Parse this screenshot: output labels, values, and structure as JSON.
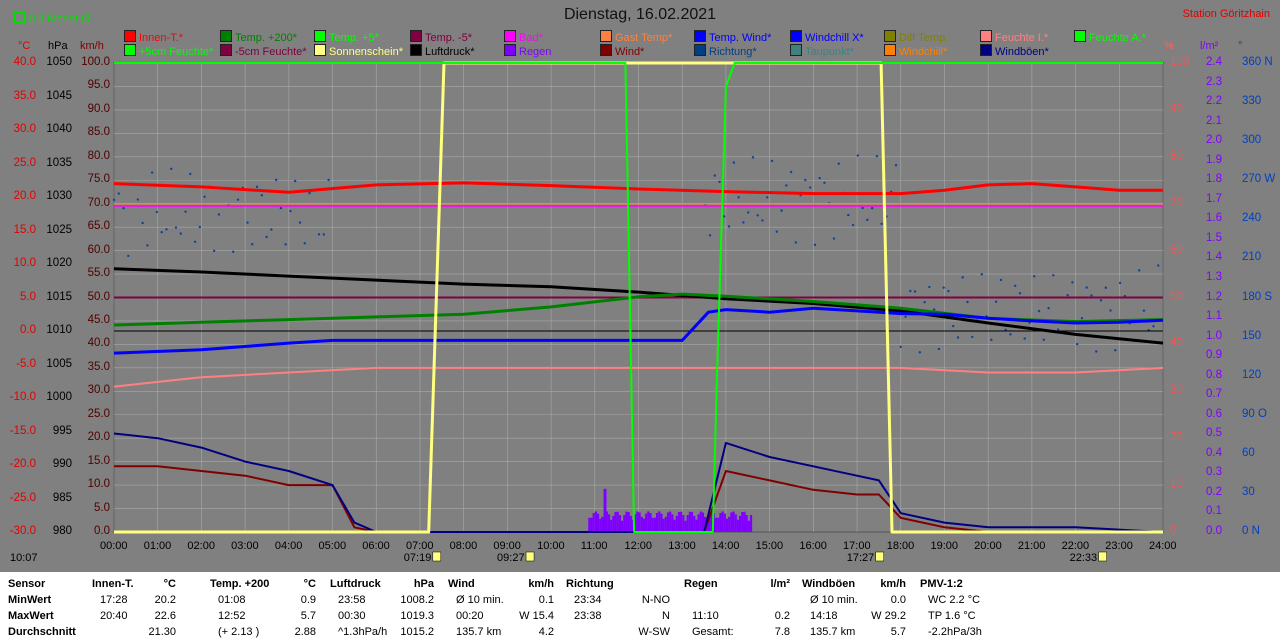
{
  "title": "Dienstag, 16.02.2021",
  "station": "Station Göritzhain",
  "monat_label": "0.8 Monat-Ø",
  "time_label": "10:07",
  "legend": [
    {
      "label": "Innen-T.*",
      "color": "#ff0000"
    },
    {
      "label": "Temp. +200*",
      "color": "#008000"
    },
    {
      "label": "Temp. +5*",
      "color": "#00ff00"
    },
    {
      "label": "Temp. -5*",
      "color": "#800040"
    },
    {
      "label": "Bad*",
      "color": "#ff00ff"
    },
    {
      "label": "Gast Temp*",
      "color": "#ff8040"
    },
    {
      "label": "Temp. Wind*",
      "color": "#0000ff"
    },
    {
      "label": "Windchill X*",
      "color": "#0000ff"
    },
    {
      "label": "Diff Temp.",
      "color": "#808000"
    },
    {
      "label": "Feuchte I.*",
      "color": "#ff8080"
    },
    {
      "label": "Feuchte A.*",
      "color": "#00ff00"
    },
    {
      "label": "+5cm Feuchte*",
      "color": "#00ff00"
    },
    {
      "label": "-5cm Feuchte*",
      "color": "#800040"
    },
    {
      "label": "Sonnenschein*",
      "color": "#ffff80"
    },
    {
      "label": "Luftdruck*",
      "color": "#000000"
    },
    {
      "label": "Regen",
      "color": "#8000ff"
    },
    {
      "label": "Wind*",
      "color": "#800000"
    },
    {
      "label": "Richtung*",
      "color": "#004080"
    },
    {
      "label": "Taupunkt*",
      "color": "#408080"
    },
    {
      "label": "Windchill*",
      "color": "#ff8000"
    },
    {
      "label": "Windböen*",
      "color": "#000080"
    }
  ],
  "units": {
    "c": "°C",
    "hpa": "hPa",
    "kmh": "km/h",
    "pct": "%",
    "lm2": "l/m²",
    "deg": "°"
  },
  "chart_data": {
    "type": "line",
    "title": "Dienstag, 16.02.2021",
    "x_ticks": [
      "00:00",
      "01:00",
      "02:00",
      "03:00",
      "04:00",
      "05:00",
      "06:00",
      "07:00",
      "08:00",
      "09:00",
      "10:00",
      "11:00",
      "12:00",
      "13:00",
      "14:00",
      "15:00",
      "16:00",
      "17:00",
      "18:00",
      "19:00",
      "20:00",
      "21:00",
      "22:00",
      "23:00",
      "24:00"
    ],
    "axes": {
      "temp_c": {
        "range": [
          -30,
          40
        ],
        "ticks": [
          "40.0",
          "35.0",
          "30.0",
          "25.0",
          "20.0",
          "15.0",
          "10.0",
          "5.0",
          "0.0",
          "-5.0",
          "-10.0",
          "-15.0",
          "-20.0",
          "-25.0",
          "-30.0"
        ]
      },
      "pressure_hpa": {
        "range": [
          980,
          1050
        ],
        "ticks": [
          "1050",
          "1045",
          "1040",
          "1035",
          "1030",
          "1025",
          "1020",
          "1015",
          "1010",
          "1005",
          "1000",
          "995",
          "990",
          "985",
          "980"
        ]
      },
      "wind_kmh": {
        "range": [
          0,
          100
        ],
        "ticks": [
          "100.0",
          "95.0",
          "90.0",
          "85.0",
          "80.0",
          "75.0",
          "70.0",
          "65.0",
          "60.0",
          "55.0",
          "50.0",
          "45.0",
          "40.0",
          "35.0",
          "30.0",
          "25.0",
          "20.0",
          "15.0",
          "10.0",
          "5.0",
          "0.0"
        ]
      },
      "humidity_pct": {
        "range": [
          0,
          100
        ],
        "ticks": [
          "100",
          "90",
          "80",
          "70",
          "60",
          "50",
          "40",
          "30",
          "20",
          "10",
          "0"
        ]
      },
      "rain_lm2": {
        "range": [
          0,
          2.5
        ],
        "ticks": [
          "2.4",
          "2.3",
          "2.2",
          "2.1",
          "2.0",
          "1.9",
          "1.8",
          "1.7",
          "1.6",
          "1.5",
          "1.4",
          "1.3",
          "1.2",
          "1.1",
          "1.0",
          "0.9",
          "0.8",
          "0.7",
          "0.6",
          "0.5",
          "0.4",
          "0.3",
          "0.2",
          "0.1",
          "0.0"
        ]
      },
      "direction_deg": {
        "range": [
          0,
          360
        ],
        "ticks": [
          "360 N",
          "330",
          "300",
          "270 W",
          "240",
          "210",
          "180 S",
          "150",
          "120",
          "90 O",
          "60",
          "30",
          "0 N"
        ]
      }
    },
    "sun_events": [
      "07:19",
      "09:27",
      "17:27",
      "22:33"
    ],
    "series": [
      {
        "name": "Innen-T.*",
        "unit": "°C",
        "x": [
          0,
          2,
          4,
          6,
          8,
          10,
          12,
          14,
          16,
          17,
          18,
          19,
          20,
          21,
          22,
          23,
          24
        ],
        "y": [
          22.0,
          21.5,
          20.7,
          21.8,
          22.1,
          21.7,
          21.2,
          20.8,
          20.5,
          20.5,
          20.5,
          21.0,
          21.8,
          22.0,
          21.5,
          21.0,
          21.0
        ]
      },
      {
        "name": "Luftdruck*",
        "unit": "hPa",
        "x": [
          0,
          2,
          4,
          6,
          8,
          10,
          12,
          14,
          16,
          18,
          20,
          22,
          24
        ],
        "y": [
          1019.3,
          1018.8,
          1018.2,
          1017.6,
          1017.0,
          1016.6,
          1015.8,
          1014.8,
          1014.1,
          1013.0,
          1011.2,
          1009.5,
          1008.2
        ]
      },
      {
        "name": "Temp. +200",
        "unit": "°C",
        "x": [
          0,
          2,
          4,
          6,
          8,
          10,
          12,
          13,
          14,
          16,
          18,
          20,
          22,
          24
        ],
        "y": [
          0.9,
          1.3,
          1.7,
          2.1,
          2.5,
          3.6,
          5.1,
          5.5,
          5.2,
          4.4,
          3.4,
          1.9,
          1.4,
          1.7
        ]
      },
      {
        "name": "Temp. Wind*",
        "unit": "°C",
        "x": [
          0,
          2,
          4,
          5,
          6,
          13,
          13.6,
          14,
          15,
          16,
          17,
          18,
          19,
          20,
          21,
          22,
          23,
          24
        ],
        "y": [
          -3.3,
          -2.8,
          -1.8,
          -1.4,
          -1.4,
          -1.4,
          2.8,
          3.2,
          2.8,
          3.4,
          3.0,
          2.6,
          2.5,
          1.9,
          1.5,
          1.2,
          1.3,
          1.6
        ]
      },
      {
        "name": "Feuchte I.*",
        "unit": "%",
        "x": [
          0,
          2,
          4,
          6,
          8,
          10,
          12,
          14,
          16,
          18,
          20,
          22,
          24
        ],
        "y": [
          31,
          33,
          34,
          35,
          35,
          35,
          35,
          35,
          35,
          35,
          34,
          34,
          35
        ]
      },
      {
        "name": "Wind*",
        "unit": "km/h",
        "x": [
          0,
          1,
          2,
          3,
          4,
          5,
          5.5,
          6,
          13.5,
          14,
          15,
          16,
          17,
          17.5,
          18,
          19,
          20,
          24
        ],
        "y": [
          14,
          14,
          13,
          12,
          10,
          10,
          1,
          0,
          0,
          13,
          11,
          9,
          8,
          8,
          3,
          1,
          0,
          0
        ]
      },
      {
        "name": "Windböen*",
        "unit": "km/h",
        "x": [
          0,
          1,
          2,
          3,
          4,
          5,
          5.5,
          6,
          13.5,
          14,
          15,
          16,
          17,
          17.5,
          18,
          19,
          20,
          22,
          24
        ],
        "y": [
          21,
          20,
          18,
          15,
          13,
          10,
          2,
          0,
          0,
          19,
          16,
          14,
          12,
          11,
          4,
          2,
          1,
          1,
          0
        ]
      },
      {
        "name": "Sonnenschein*",
        "unit": "%",
        "x": [
          0,
          7.2,
          7.55,
          8,
          11.7,
          12,
          13.5,
          17.55,
          17.8,
          24
        ],
        "y": [
          0,
          0,
          100,
          100,
          100,
          100,
          100,
          100,
          0,
          0
        ]
      },
      {
        "name": "Feuchte A.*",
        "unit": "%",
        "x": [
          0,
          11.5,
          11.7,
          11.9,
          12.5,
          13.7,
          13.8,
          14.0,
          14.2,
          24
        ],
        "y": [
          100,
          100,
          100,
          0,
          0,
          0,
          35,
          95,
          100,
          100
        ]
      }
    ]
  },
  "stats": {
    "rowlabels": [
      "Sensor",
      "MinWert",
      "MaxWert",
      "Durchschnitt"
    ],
    "cols": [
      {
        "h1": "Innen-T.",
        "h2": "°C",
        "r1a": "17:28",
        "r1b": "20.2",
        "r2a": "20:40",
        "r2b": "22.6",
        "r3a": "",
        "r3b": "21.30"
      },
      {
        "h1": "Temp. +200",
        "h2": "°C",
        "r1a": "01:08",
        "r1b": "0.9",
        "r2a": "12:52",
        "r2b": "5.7",
        "r3a": "(+ 2.13 )",
        "r3b": "2.88"
      },
      {
        "h1": "Luftdruck",
        "h2": "hPa",
        "r1a": "23:58",
        "r1b": "1008.2",
        "r2a": "00:30",
        "r2b": "1019.3",
        "r3a": "^1.3hPa/h",
        "r3b": "1015.2"
      },
      {
        "h1": "Wind",
        "h2": "km/h",
        "r1a": "Ø 10 min.",
        "r1b": "0.1",
        "r2a": "00:20",
        "r2b": "W 15.4",
        "r3a": "135.7 km",
        "r3b": "4.2"
      },
      {
        "h1": "Richtung",
        "h2": "",
        "r1a": "23:34",
        "r1b": "N-NO",
        "r2a": "23:38",
        "r2b": "N",
        "r3a": "",
        "r3b": "W-SW"
      },
      {
        "h1": "Regen",
        "h2": "l/m²",
        "r1a": "",
        "r1b": "",
        "r2a": "11:10",
        "r2b": "0.2",
        "r3a": "Gesamt:",
        "r3b": "7.8"
      },
      {
        "h1": "Windböen",
        "h2": "km/h",
        "r1a": "Ø 10 min.",
        "r1b": "0.0",
        "r2a": "14:18",
        "r2b": "W 29.2",
        "r3a": "135.7 km",
        "r3b": "5.7"
      },
      {
        "h1": "PMV-1:2",
        "h2": "",
        "r1a": "WC 2.2 °C",
        "r1b": "",
        "r2a": "TP 1.6 °C",
        "r2b": "",
        "r3a": "-2.2hPa/3h",
        "r3b": ""
      }
    ]
  }
}
